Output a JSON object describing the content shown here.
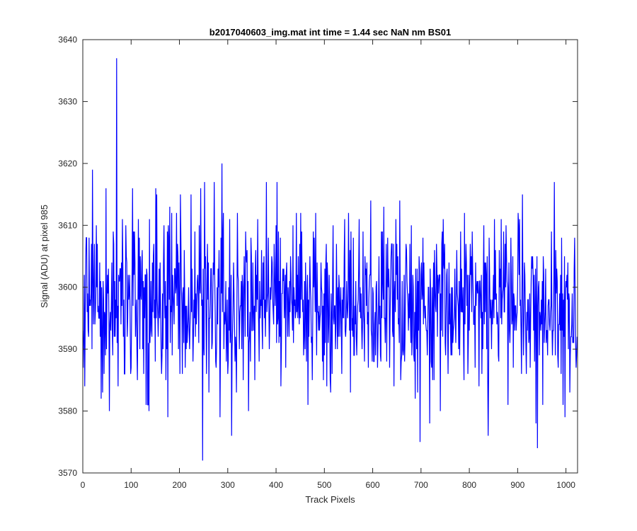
{
  "chart_data": {
    "type": "line",
    "title": "b2017040603_img.mat int time = 1.44 sec  NaN nm BS01",
    "xlabel": "Track Pixels",
    "ylabel": "Signal (ADU) at pixel 985",
    "xlim": [
      0,
      1024
    ],
    "ylim": [
      3570,
      3640
    ],
    "xticks": [
      0,
      100,
      200,
      300,
      400,
      500,
      600,
      700,
      800,
      900,
      1000
    ],
    "yticks": [
      3570,
      3580,
      3590,
      3600,
      3610,
      3620,
      3630,
      3640
    ],
    "grid": false,
    "series_color": "#0000ff",
    "noise": {
      "count": 1024,
      "mean": 3597.5,
      "std": 6,
      "min": 3576,
      "max": 3618
    },
    "series": [
      {
        "points": [
          [
            0,
            3593
          ],
          [
            4,
            3584
          ],
          [
            8,
            3608
          ],
          [
            12,
            3592
          ],
          [
            16,
            3597
          ],
          [
            20,
            3619
          ],
          [
            25,
            3594
          ],
          [
            30,
            3607
          ],
          [
            34,
            3595
          ],
          [
            38,
            3582
          ],
          [
            42,
            3601
          ],
          [
            45,
            3596
          ],
          [
            48,
            3616
          ],
          [
            52,
            3599
          ],
          [
            55,
            3580
          ],
          [
            60,
            3604
          ],
          [
            65,
            3592
          ],
          [
            70,
            3637
          ],
          [
            73,
            3584
          ],
          [
            77,
            3603
          ],
          [
            82,
            3611
          ],
          [
            86,
            3586
          ],
          [
            90,
            3605
          ],
          [
            95,
            3598
          ],
          [
            100,
            3587
          ],
          [
            105,
            3609
          ],
          [
            110,
            3596
          ],
          [
            115,
            3611
          ],
          [
            118,
            3590
          ],
          [
            122,
            3604
          ],
          [
            126,
            3586
          ],
          [
            130,
            3602
          ],
          [
            134,
            3581
          ],
          [
            138,
            3611
          ],
          [
            142,
            3593
          ],
          [
            146,
            3605
          ],
          [
            150,
            3588
          ],
          [
            153,
            3615
          ],
          [
            156,
            3592
          ],
          [
            160,
            3604
          ],
          [
            164,
            3589
          ],
          [
            168,
            3610
          ],
          [
            172,
            3585
          ],
          [
            176,
            3579
          ],
          [
            180,
            3613
          ],
          [
            185,
            3589
          ],
          [
            190,
            3603
          ],
          [
            194,
            3612
          ],
          [
            198,
            3590
          ],
          [
            202,
            3615
          ],
          [
            206,
            3586
          ],
          [
            210,
            3606
          ],
          [
            215,
            3597
          ],
          [
            220,
            3593
          ],
          [
            224,
            3615
          ],
          [
            228,
            3588
          ],
          [
            232,
            3609
          ],
          [
            236,
            3598
          ],
          [
            240,
            3591
          ],
          [
            244,
            3616
          ],
          [
            248,
            3572
          ],
          [
            252,
            3617
          ],
          [
            256,
            3586
          ],
          [
            260,
            3604
          ],
          [
            264,
            3598
          ],
          [
            268,
            3591
          ],
          [
            272,
            3617
          ],
          [
            276,
            3587
          ],
          [
            280,
            3603
          ],
          [
            284,
            3579
          ],
          [
            288,
            3620
          ],
          [
            292,
            3590
          ],
          [
            296,
            3601
          ],
          [
            300,
            3586
          ],
          [
            304,
            3611
          ],
          [
            308,
            3576
          ],
          [
            312,
            3604
          ],
          [
            316,
            3592
          ],
          [
            320,
            3612
          ],
          [
            326,
            3597
          ],
          [
            332,
            3585
          ],
          [
            338,
            3605
          ],
          [
            343,
            3580
          ],
          [
            348,
            3608
          ],
          [
            354,
            3593
          ],
          [
            360,
            3602
          ],
          [
            365,
            3588
          ],
          [
            370,
            3606
          ],
          [
            376,
            3595
          ],
          [
            380,
            3617
          ],
          [
            386,
            3590
          ],
          [
            392,
            3604
          ],
          [
            398,
            3597
          ],
          [
            402,
            3617
          ],
          [
            408,
            3592
          ],
          [
            414,
            3603
          ],
          [
            420,
            3587
          ],
          [
            425,
            3600
          ],
          [
            430,
            3605
          ],
          [
            436,
            3591
          ],
          [
            442,
            3612
          ],
          [
            448,
            3594
          ],
          [
            454,
            3601
          ],
          [
            460,
            3590
          ],
          [
            466,
            3581
          ],
          [
            470,
            3605
          ],
          [
            476,
            3596
          ],
          [
            482,
            3612
          ],
          [
            488,
            3593
          ],
          [
            494,
            3600
          ],
          [
            500,
            3589
          ],
          [
            506,
            3604
          ],
          [
            512,
            3585
          ],
          [
            518,
            3610
          ],
          [
            524,
            3594
          ],
          [
            530,
            3602
          ],
          [
            536,
            3586
          ],
          [
            542,
            3611
          ],
          [
            548,
            3595
          ],
          [
            554,
            3583
          ],
          [
            560,
            3608
          ],
          [
            566,
            3592
          ],
          [
            572,
            3611
          ],
          [
            578,
            3590
          ],
          [
            584,
            3605
          ],
          [
            590,
            3596
          ],
          [
            596,
            3614
          ],
          [
            602,
            3588
          ],
          [
            608,
            3601
          ],
          [
            614,
            3594
          ],
          [
            620,
            3609
          ],
          [
            626,
            3591
          ],
          [
            632,
            3600
          ],
          [
            638,
            3605
          ],
          [
            644,
            3584
          ],
          [
            650,
            3607
          ],
          [
            656,
            3614
          ],
          [
            662,
            3590
          ],
          [
            668,
            3602
          ],
          [
            674,
            3593
          ],
          [
            680,
            3610
          ],
          [
            686,
            3588
          ],
          [
            692,
            3603
          ],
          [
            698,
            3575
          ],
          [
            704,
            3608
          ],
          [
            710,
            3594
          ],
          [
            716,
            3600
          ],
          [
            722,
            3587
          ],
          [
            728,
            3606
          ],
          [
            734,
            3592
          ],
          [
            740,
            3580
          ],
          [
            746,
            3611
          ],
          [
            752,
            3596
          ],
          [
            758,
            3604
          ],
          [
            764,
            3589
          ],
          [
            770,
            3603
          ],
          [
            776,
            3598
          ],
          [
            782,
            3609
          ],
          [
            788,
            3591
          ],
          [
            794,
            3604
          ],
          [
            800,
            3593
          ],
          [
            806,
            3609
          ],
          [
            812,
            3587
          ],
          [
            818,
            3601
          ],
          [
            824,
            3595
          ],
          [
            830,
            3610
          ],
          [
            836,
            3590
          ],
          [
            842,
            3602
          ],
          [
            848,
            3594
          ],
          [
            854,
            3606
          ],
          [
            860,
            3589
          ],
          [
            866,
            3611
          ],
          [
            872,
            3596
          ],
          [
            878,
            3601
          ],
          [
            884,
            3591
          ],
          [
            890,
            3605
          ],
          [
            896,
            3597
          ],
          [
            902,
            3610
          ],
          [
            908,
            3586
          ],
          [
            914,
            3604
          ],
          [
            920,
            3593
          ],
          [
            926,
            3587
          ],
          [
            932,
            3602
          ],
          [
            938,
            3578
          ],
          [
            941,
            3574
          ],
          [
            946,
            3596
          ],
          [
            952,
            3581
          ],
          [
            958,
            3603
          ],
          [
            964,
            3598
          ],
          [
            970,
            3609
          ],
          [
            976,
            3617
          ],
          [
            982,
            3601
          ],
          [
            988,
            3593
          ],
          [
            994,
            3581
          ],
          [
            998,
            3579
          ],
          [
            1003,
            3598
          ],
          [
            1008,
            3583
          ],
          [
            1013,
            3599
          ],
          [
            1018,
            3608
          ],
          [
            1024,
            3591
          ]
        ]
      }
    ]
  }
}
